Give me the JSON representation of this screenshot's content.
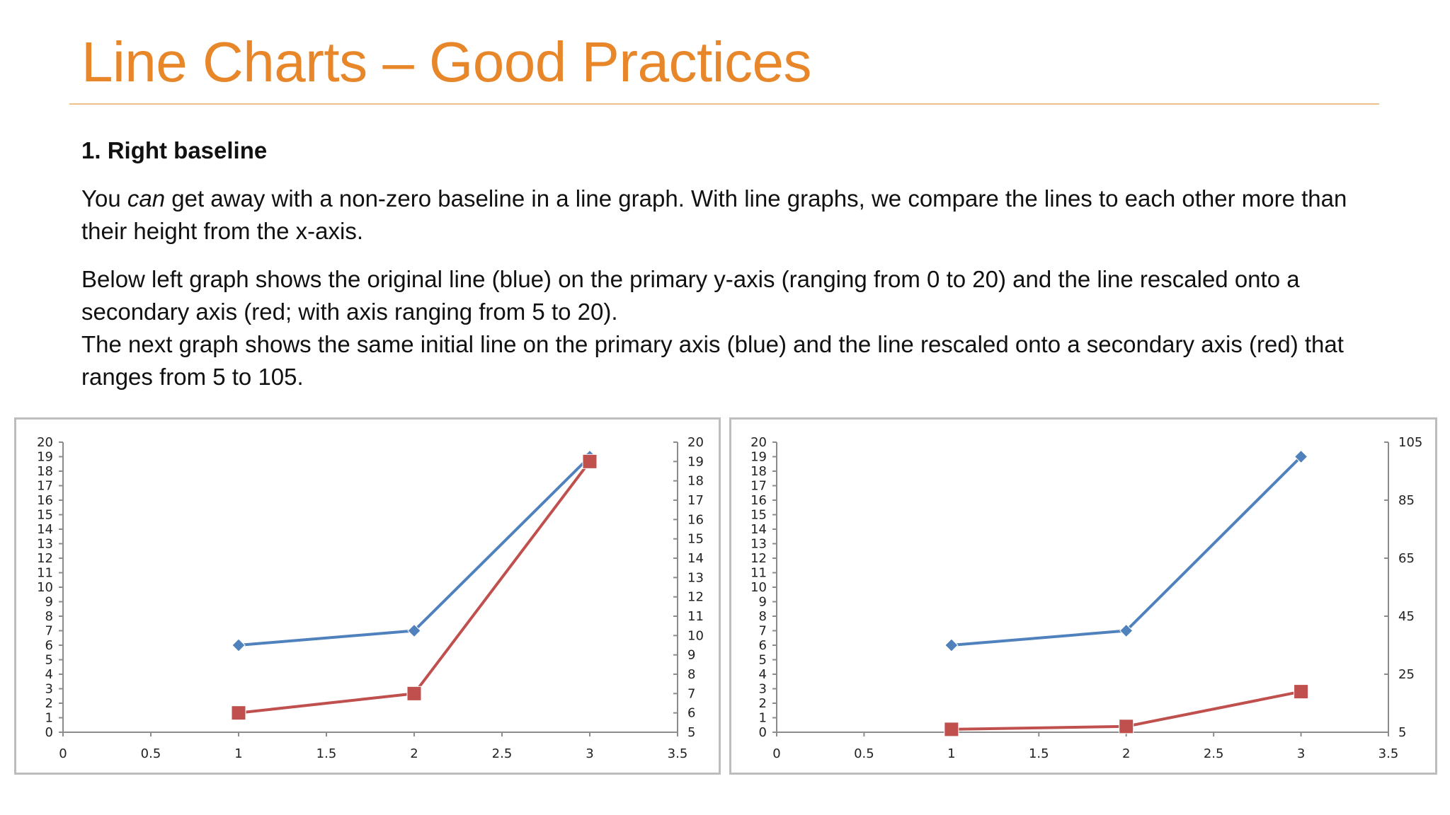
{
  "slide": {
    "title": "Line Charts – Good Practices",
    "heading": "1. Right baseline",
    "para1_pre": "You ",
    "para1_em": "can",
    "para1_post": " get away with a non-zero baseline in a line graph. With line graphs, we compare the lines to each other more than their height from the x-axis.",
    "para2_line1": "Below left graph shows the original line (blue) on the primary y-axis (ranging from 0 to 20) and the line rescaled onto a secondary axis (red; with axis ranging from 5 to 20).",
    "para2_line2": "The next graph shows the same initial line on the primary axis (blue) and the line rescaled onto a secondary axis (red) that ranges from 5 to 105."
  },
  "colors": {
    "title": "#e8862a",
    "blue_series": "#4f81bd",
    "red_series": "#c0504d"
  },
  "chart_data": [
    {
      "type": "line",
      "xlim": [
        0,
        3.5
      ],
      "xticks": [
        "0",
        "0.5",
        "1",
        "1.5",
        "2",
        "2.5",
        "3",
        "3.5"
      ],
      "ylim": [
        0,
        20
      ],
      "yticks": [
        "0",
        "1",
        "2",
        "3",
        "4",
        "5",
        "6",
        "7",
        "8",
        "9",
        "10",
        "11",
        "12",
        "13",
        "14",
        "15",
        "16",
        "17",
        "18",
        "19",
        "20"
      ],
      "y2lim": [
        5,
        20
      ],
      "y2ticks": [
        "5",
        "6",
        "7",
        "8",
        "9",
        "10",
        "11",
        "12",
        "13",
        "14",
        "15",
        "16",
        "17",
        "18",
        "19",
        "20"
      ],
      "grid": false,
      "legend": "none",
      "series": [
        {
          "axis": "primary",
          "color": "#4f81bd",
          "marker": "diamond",
          "x": [
            1,
            2,
            3
          ],
          "y": [
            6,
            7,
            19
          ]
        },
        {
          "axis": "secondary",
          "color": "#c0504d",
          "marker": "square",
          "x": [
            1,
            2,
            3
          ],
          "y": [
            6,
            7,
            19
          ]
        }
      ]
    },
    {
      "type": "line",
      "xlim": [
        0,
        3.5
      ],
      "xticks": [
        "0",
        "0.5",
        "1",
        "1.5",
        "2",
        "2.5",
        "3",
        "3.5"
      ],
      "ylim": [
        0,
        20
      ],
      "yticks": [
        "0",
        "1",
        "2",
        "3",
        "4",
        "5",
        "6",
        "7",
        "8",
        "9",
        "10",
        "11",
        "12",
        "13",
        "14",
        "15",
        "16",
        "17",
        "18",
        "19",
        "20"
      ],
      "y2lim": [
        5,
        105
      ],
      "y2ticks": [
        "5",
        "25",
        "45",
        "65",
        "85",
        "105"
      ],
      "grid": false,
      "legend": "none",
      "series": [
        {
          "axis": "primary",
          "color": "#4f81bd",
          "marker": "diamond",
          "x": [
            1,
            2,
            3
          ],
          "y": [
            6,
            7,
            19
          ]
        },
        {
          "axis": "secondary",
          "color": "#c0504d",
          "marker": "square",
          "x": [
            1,
            2,
            3
          ],
          "y": [
            6,
            7,
            19
          ]
        }
      ]
    }
  ]
}
